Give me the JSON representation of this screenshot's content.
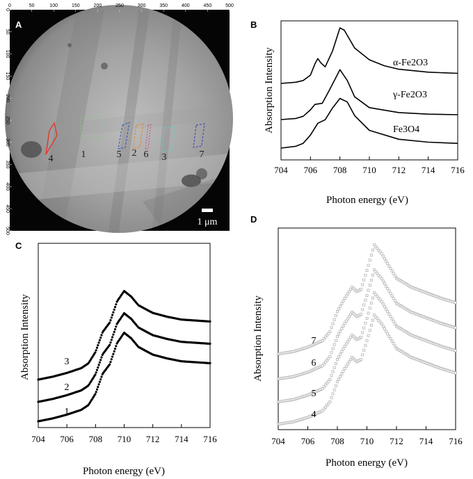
{
  "chart_data": [
    {
      "panel": "A",
      "type": "image",
      "x_ticks": [
        "0",
        "50",
        "100",
        "150",
        "200",
        "250",
        "300",
        "350",
        "400",
        "450",
        "500"
      ],
      "y_ticks": [
        "0",
        "50",
        "100",
        "150",
        "200",
        "250",
        "300",
        "350",
        "400",
        "450",
        "500"
      ],
      "regions": [
        {
          "label": "4",
          "color": "#e0392b"
        },
        {
          "label": "1",
          "color": "#8fbf8a"
        },
        {
          "label": "5",
          "color": "#3f5bb3"
        },
        {
          "label": "2",
          "color": "#e08a3a"
        },
        {
          "label": "6",
          "color": "#c04a8a"
        },
        {
          "label": "3",
          "color": "#6fc7c0"
        },
        {
          "label": "7",
          "color": "#4a4ab0"
        }
      ],
      "scale_bar_label": "1 μm"
    },
    {
      "panel": "B",
      "type": "line",
      "xlabel": "Photon energy (eV)",
      "ylabel": "Absorption Intensity",
      "xlim": [
        704,
        716
      ],
      "x_ticks": [
        "704",
        "706",
        "708",
        "710",
        "712",
        "714",
        "716"
      ],
      "series": [
        {
          "name": "α-Fe2O3",
          "x": [
            704,
            705,
            705.5,
            706,
            706.3,
            706.5,
            706.7,
            707,
            707.5,
            708,
            708.3,
            709,
            710,
            711,
            712,
            714,
            716
          ],
          "y": [
            0.0,
            0.02,
            0.05,
            0.14,
            0.33,
            0.42,
            0.35,
            0.28,
            0.55,
            0.94,
            0.9,
            0.6,
            0.4,
            0.3,
            0.24,
            0.19,
            0.17
          ]
        },
        {
          "name": "γ-Fe2O3",
          "x": [
            704,
            705,
            705.5,
            706,
            706.3,
            706.8,
            707.3,
            708,
            708.5,
            709,
            710,
            712,
            714,
            716
          ],
          "y": [
            0.0,
            0.02,
            0.06,
            0.18,
            0.28,
            0.3,
            0.55,
            0.92,
            0.72,
            0.42,
            0.22,
            0.13,
            0.1,
            0.09
          ]
        },
        {
          "name": "Fe3O4",
          "x": [
            704,
            705,
            705.5,
            706,
            706.5,
            707,
            707.5,
            708,
            708.5,
            709,
            710,
            712,
            714,
            716
          ],
          "y": [
            0.0,
            0.03,
            0.08,
            0.22,
            0.42,
            0.48,
            0.68,
            0.84,
            0.78,
            0.55,
            0.3,
            0.15,
            0.1,
            0.08
          ]
        }
      ]
    },
    {
      "panel": "C",
      "type": "scatter",
      "xlabel": "Photon energy (eV)",
      "ylabel": "Absorption Intensity",
      "xlim": [
        704,
        716
      ],
      "x_ticks": [
        "704",
        "706",
        "708",
        "710",
        "712",
        "714",
        "716"
      ],
      "series": [
        {
          "name": "1",
          "x": [
            704,
            705,
            706,
            707,
            707.5,
            708,
            708.5,
            709,
            709.5,
            710,
            710.5,
            711,
            712,
            713,
            714,
            716
          ],
          "y": [
            0.0,
            0.03,
            0.07,
            0.12,
            0.17,
            0.29,
            0.5,
            0.6,
            0.82,
            0.93,
            0.87,
            0.78,
            0.7,
            0.66,
            0.63,
            0.61
          ]
        },
        {
          "name": "2",
          "x": [
            704,
            705,
            706,
            707,
            707.5,
            708,
            708.5,
            709,
            709.5,
            710,
            710.5,
            711,
            712,
            713,
            714,
            716
          ],
          "y": [
            0.0,
            0.03,
            0.07,
            0.12,
            0.17,
            0.29,
            0.5,
            0.6,
            0.82,
            0.93,
            0.87,
            0.78,
            0.7,
            0.66,
            0.63,
            0.61
          ]
        },
        {
          "name": "3",
          "x": [
            704,
            705,
            706,
            707,
            707.5,
            708,
            708.5,
            709,
            709.5,
            710,
            710.5,
            711,
            712,
            713,
            714,
            716
          ],
          "y": [
            0.0,
            0.03,
            0.07,
            0.12,
            0.17,
            0.29,
            0.5,
            0.6,
            0.82,
            0.93,
            0.87,
            0.78,
            0.7,
            0.66,
            0.63,
            0.61
          ]
        }
      ]
    },
    {
      "panel": "D",
      "type": "scatter",
      "xlabel": "Photon energy (eV)",
      "ylabel": "Absorption Intensity",
      "xlim": [
        704,
        716
      ],
      "x_ticks": [
        "704",
        "706",
        "708",
        "710",
        "712",
        "714",
        "716"
      ],
      "series": [
        {
          "name": "4",
          "x": [
            704,
            705,
            706,
            707,
            707.5,
            708,
            708.5,
            709,
            709.3,
            709.6,
            710,
            710.5,
            711,
            712,
            713,
            714,
            715,
            716
          ],
          "y": [
            0.0,
            0.02,
            0.06,
            0.12,
            0.2,
            0.38,
            0.5,
            0.6,
            0.56,
            0.58,
            0.75,
            0.98,
            0.9,
            0.68,
            0.6,
            0.55,
            0.5,
            0.46
          ]
        },
        {
          "name": "5",
          "x": [
            704,
            705,
            706,
            707,
            707.5,
            708,
            708.5,
            709,
            709.3,
            709.6,
            710,
            710.5,
            711,
            712,
            713,
            714,
            715,
            716
          ],
          "y": [
            0.0,
            0.02,
            0.06,
            0.12,
            0.2,
            0.38,
            0.5,
            0.6,
            0.56,
            0.58,
            0.75,
            0.98,
            0.9,
            0.68,
            0.6,
            0.55,
            0.5,
            0.46
          ]
        },
        {
          "name": "6",
          "x": [
            704,
            705,
            706,
            707,
            707.5,
            708,
            708.5,
            709,
            709.3,
            709.6,
            710,
            710.5,
            711,
            712,
            713,
            714,
            715,
            716
          ],
          "y": [
            0.0,
            0.02,
            0.06,
            0.12,
            0.2,
            0.38,
            0.5,
            0.6,
            0.56,
            0.58,
            0.75,
            0.98,
            0.9,
            0.68,
            0.6,
            0.55,
            0.5,
            0.46
          ]
        },
        {
          "name": "7",
          "x": [
            704,
            705,
            706,
            707,
            707.5,
            708,
            708.5,
            709,
            709.3,
            709.6,
            710,
            710.5,
            711,
            712,
            713,
            714,
            715,
            716
          ],
          "y": [
            0.0,
            0.02,
            0.06,
            0.12,
            0.2,
            0.38,
            0.5,
            0.6,
            0.56,
            0.58,
            0.75,
            0.98,
            0.9,
            0.68,
            0.6,
            0.55,
            0.5,
            0.46
          ]
        }
      ]
    }
  ],
  "colors": {
    "image_background": "#050505",
    "micro_gray": "#9a9a9a",
    "line": "#000000",
    "panel_c_marker": "#000000",
    "panel_d_marker": "#b5b5b5"
  }
}
